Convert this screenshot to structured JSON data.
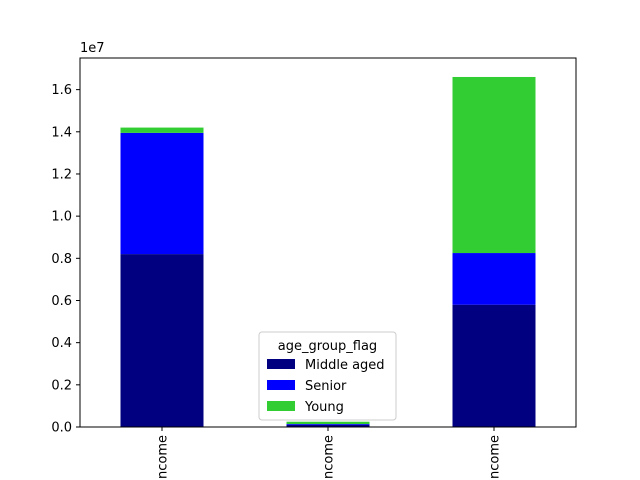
{
  "chart_data": {
    "type": "bar",
    "stacked": true,
    "categories": [
      "ncome",
      "ncome",
      "ncome"
    ],
    "category_label_orientation": "rotated-90",
    "series": [
      {
        "name": "Middle aged",
        "values": [
          8200000,
          100000,
          5800000
        ],
        "color": "#000080"
      },
      {
        "name": "Senior",
        "values": [
          5750000,
          40000,
          2450000
        ],
        "color": "#0000ff"
      },
      {
        "name": "Young",
        "values": [
          250000,
          110000,
          8350000
        ],
        "color": "#32cd32"
      }
    ],
    "ylim": [
      0,
      17500000
    ],
    "yticks": [
      0,
      2000000,
      4000000,
      6000000,
      8000000,
      10000000,
      12000000,
      14000000,
      16000000
    ],
    "ytick_labels": [
      "0.0",
      "0.2",
      "0.4",
      "0.6",
      "0.8",
      "1.0",
      "1.2",
      "1.4",
      "1.6"
    ],
    "y_offset_text": "1e7",
    "legend": {
      "title": "age_group_flag",
      "placement": "lower-center",
      "entries": [
        "Middle aged",
        "Senior",
        "Young"
      ]
    },
    "grid": false,
    "title": "",
    "xlabel": "",
    "ylabel": ""
  }
}
